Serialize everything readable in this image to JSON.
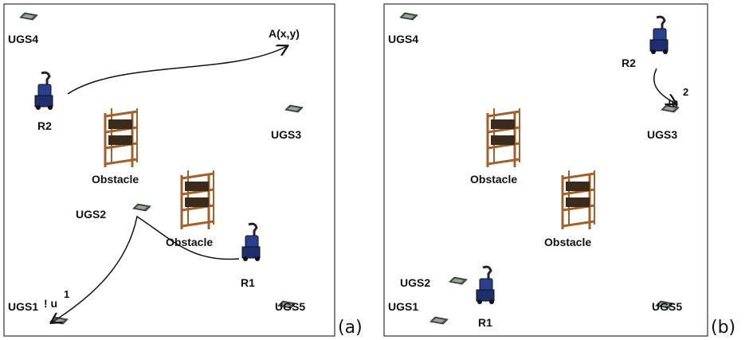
{
  "panel_a": {
    "caption": "(a)",
    "target": "A(x,y)",
    "sensors": [
      "UGS1",
      "UGS2",
      "UGS3",
      "UGS4",
      "UGS5"
    ],
    "robots": [
      "R1",
      "R2"
    ],
    "obstacles": [
      "Obstacle",
      "Obstacle"
    ],
    "velocity": {
      "symbol": "! u",
      "index": "1"
    }
  },
  "panel_b": {
    "caption": "(b)",
    "sensors": [
      "UGS1",
      "UGS2",
      "UGS3",
      "UGS4",
      "UGS5"
    ],
    "robots": [
      "R1",
      "R2"
    ],
    "obstacles": [
      "Obstacle",
      "Obstacle"
    ],
    "velocity": {
      "symbol": "!u",
      "index": "2"
    }
  }
}
